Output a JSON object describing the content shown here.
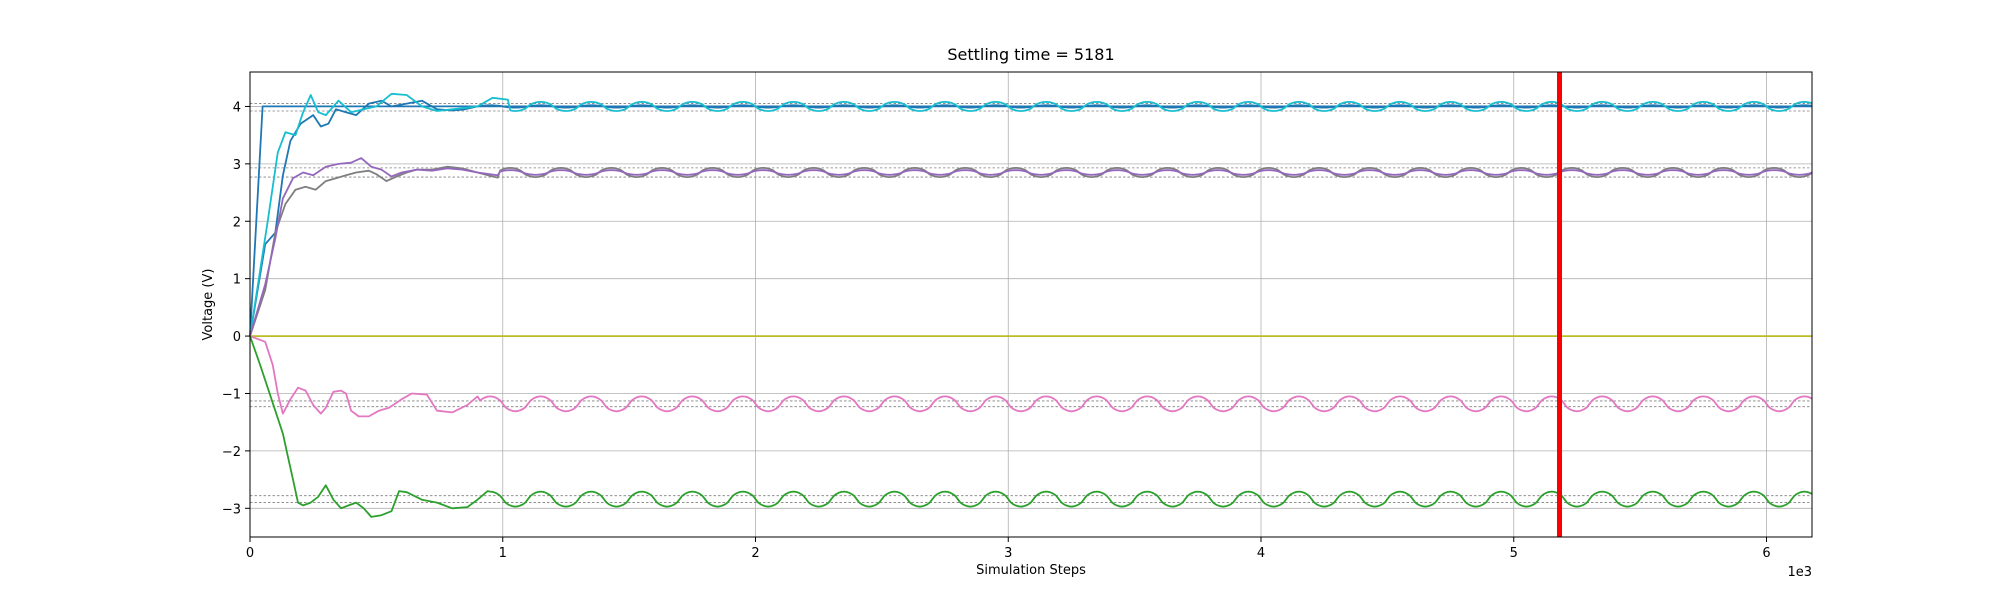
{
  "chart_data": {
    "type": "line",
    "title": "Settling time = 5181",
    "xlabel": "Simulation Steps",
    "ylabel": "Voltage (V)",
    "x_scale_note": "1e3",
    "xlim": [
      0,
      6180
    ],
    "ylim": [
      -3.5,
      4.6
    ],
    "x_ticks": [
      0,
      1000,
      2000,
      3000,
      4000,
      5000,
      6000
    ],
    "x_tick_labels": [
      "0",
      "1",
      "2",
      "3",
      "4",
      "5",
      "6"
    ],
    "y_ticks": [
      -3,
      -2,
      -1,
      0,
      1,
      2,
      3,
      4
    ],
    "y_tick_labels": [
      "−3",
      "−2",
      "−1",
      "0",
      "1",
      "2",
      "3",
      "4"
    ],
    "grid": true,
    "settling_time": 5181,
    "settling_line_color": "#ff0000",
    "reference_lines": [
      4.05,
      3.92,
      2.93,
      2.77,
      -1.13,
      -1.23,
      -2.78,
      -2.9
    ],
    "series": [
      {
        "color": "#1f77b4",
        "kind": "step",
        "steady": 4.0,
        "points": [
          [
            0,
            0
          ],
          [
            50,
            4.0
          ],
          [
            6180,
            4.0
          ]
        ]
      },
      {
        "color": "#1f77b4",
        "kind": "transient",
        "steady": 4.0,
        "osc_amp": 0.02,
        "period": 200,
        "osc_start": 900,
        "points": [
          [
            0,
            0
          ],
          [
            60,
            1.6
          ],
          [
            100,
            1.8
          ],
          [
            130,
            2.8
          ],
          [
            160,
            3.4
          ],
          [
            200,
            3.7
          ],
          [
            250,
            3.85
          ],
          [
            280,
            3.65
          ],
          [
            310,
            3.7
          ],
          [
            340,
            3.95
          ],
          [
            380,
            3.9
          ],
          [
            420,
            3.85
          ],
          [
            470,
            4.05
          ],
          [
            520,
            4.1
          ],
          [
            560,
            4.0
          ],
          [
            620,
            4.05
          ],
          [
            680,
            4.1
          ],
          [
            740,
            3.95
          ],
          [
            800,
            3.93
          ],
          [
            850,
            3.95
          ],
          [
            900,
            4.0
          ]
        ]
      },
      {
        "color": "#17becf",
        "kind": "transient",
        "steady": 4.0,
        "osc_amp": 0.08,
        "period": 200,
        "osc_start": 900,
        "points": [
          [
            0,
            0
          ],
          [
            70,
            2.0
          ],
          [
            110,
            3.2
          ],
          [
            140,
            3.55
          ],
          [
            180,
            3.5
          ],
          [
            210,
            3.9
          ],
          [
            240,
            4.2
          ],
          [
            270,
            3.9
          ],
          [
            300,
            3.85
          ],
          [
            350,
            4.1
          ],
          [
            400,
            3.9
          ],
          [
            450,
            3.95
          ],
          [
            500,
            4.0
          ],
          [
            560,
            4.22
          ],
          [
            620,
            4.2
          ],
          [
            680,
            4.0
          ],
          [
            740,
            3.92
          ],
          [
            800,
            3.95
          ],
          [
            860,
            3.98
          ],
          [
            900,
            4.0
          ],
          [
            960,
            4.15
          ],
          [
            1020,
            4.12
          ]
        ]
      },
      {
        "color": "#7f7f7f",
        "kind": "transient",
        "steady": 2.85,
        "osc_amp": 0.08,
        "period": 200,
        "osc_start": 980,
        "points": [
          [
            0,
            0
          ],
          [
            60,
            0.8
          ],
          [
            100,
            1.8
          ],
          [
            140,
            2.3
          ],
          [
            180,
            2.55
          ],
          [
            220,
            2.6
          ],
          [
            260,
            2.55
          ],
          [
            300,
            2.7
          ],
          [
            340,
            2.75
          ],
          [
            380,
            2.8
          ],
          [
            420,
            2.85
          ],
          [
            470,
            2.88
          ],
          [
            500,
            2.82
          ],
          [
            540,
            2.7
          ],
          [
            580,
            2.78
          ],
          [
            620,
            2.85
          ],
          [
            660,
            2.9
          ],
          [
            720,
            2.9
          ],
          [
            780,
            2.95
          ],
          [
            840,
            2.92
          ],
          [
            900,
            2.85
          ],
          [
            960,
            2.78
          ],
          [
            980,
            2.76
          ]
        ]
      },
      {
        "color": "#9467bd",
        "kind": "transient",
        "steady": 2.85,
        "osc_amp": 0.04,
        "period": 200,
        "osc_start": 980,
        "points": [
          [
            0,
            0
          ],
          [
            60,
            0.9
          ],
          [
            100,
            1.7
          ],
          [
            130,
            2.4
          ],
          [
            170,
            2.75
          ],
          [
            210,
            2.85
          ],
          [
            250,
            2.8
          ],
          [
            300,
            2.95
          ],
          [
            350,
            3.0
          ],
          [
            400,
            3.02
          ],
          [
            440,
            3.1
          ],
          [
            480,
            2.95
          ],
          [
            520,
            2.9
          ],
          [
            560,
            2.78
          ],
          [
            600,
            2.85
          ],
          [
            660,
            2.9
          ],
          [
            720,
            2.88
          ],
          [
            780,
            2.92
          ],
          [
            840,
            2.9
          ],
          [
            900,
            2.85
          ],
          [
            980,
            2.8
          ]
        ]
      },
      {
        "color": "#bcbd22",
        "kind": "step",
        "steady": 0.0,
        "points": [
          [
            0,
            0
          ],
          [
            6180,
            0
          ]
        ]
      },
      {
        "color": "#e377c2",
        "kind": "transient",
        "steady": -1.18,
        "osc_amp": 0.13,
        "period": 200,
        "osc_start": 900,
        "points": [
          [
            0,
            0
          ],
          [
            60,
            -0.1
          ],
          [
            90,
            -0.5
          ],
          [
            110,
            -1.0
          ],
          [
            130,
            -1.35
          ],
          [
            160,
            -1.1
          ],
          [
            190,
            -0.9
          ],
          [
            220,
            -0.95
          ],
          [
            250,
            -1.2
          ],
          [
            280,
            -1.35
          ],
          [
            300,
            -1.25
          ],
          [
            330,
            -0.97
          ],
          [
            360,
            -0.95
          ],
          [
            380,
            -1.0
          ],
          [
            400,
            -1.3
          ],
          [
            430,
            -1.4
          ],
          [
            470,
            -1.4
          ],
          [
            510,
            -1.3
          ],
          [
            550,
            -1.25
          ],
          [
            600,
            -1.1
          ],
          [
            640,
            -1.0
          ],
          [
            700,
            -1.02
          ],
          [
            740,
            -1.3
          ],
          [
            800,
            -1.33
          ],
          [
            860,
            -1.2
          ],
          [
            900,
            -1.05
          ]
        ]
      },
      {
        "color": "#2ca02c",
        "kind": "transient",
        "steady": -2.84,
        "osc_amp": 0.13,
        "period": 200,
        "osc_start": 900,
        "points": [
          [
            0,
            0
          ],
          [
            40,
            -0.5
          ],
          [
            70,
            -0.9
          ],
          [
            100,
            -1.3
          ],
          [
            130,
            -1.7
          ],
          [
            150,
            -2.1
          ],
          [
            170,
            -2.5
          ],
          [
            190,
            -2.9
          ],
          [
            210,
            -2.95
          ],
          [
            240,
            -2.9
          ],
          [
            270,
            -2.8
          ],
          [
            300,
            -2.6
          ],
          [
            330,
            -2.85
          ],
          [
            360,
            -3.0
          ],
          [
            390,
            -2.95
          ],
          [
            420,
            -2.9
          ],
          [
            450,
            -3.0
          ],
          [
            480,
            -3.15
          ],
          [
            520,
            -3.12
          ],
          [
            560,
            -3.05
          ],
          [
            590,
            -2.7
          ],
          [
            620,
            -2.72
          ],
          [
            680,
            -2.85
          ],
          [
            740,
            -2.9
          ],
          [
            800,
            -3.0
          ],
          [
            860,
            -2.98
          ],
          [
            900,
            -2.85
          ],
          [
            940,
            -2.7
          ]
        ]
      }
    ]
  }
}
